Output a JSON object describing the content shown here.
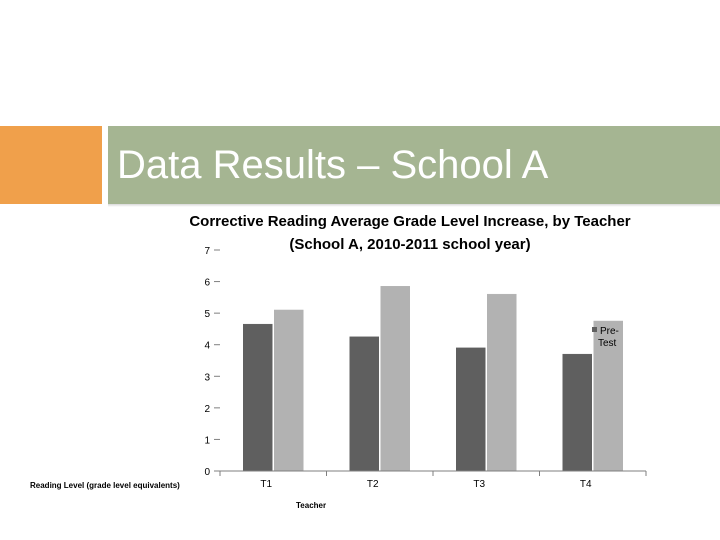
{
  "slide": {
    "title": "Data Results – School A",
    "accent_color": "#f0a04b",
    "band_color": "#a5b592"
  },
  "chart_data": {
    "type": "bar",
    "title_lines": [
      "Corrective Reading Average Grade Level Increase, by Teacher",
      "(School A, 2010-2011 school year)"
    ],
    "categories": [
      "T1",
      "T2",
      "T3",
      "T4"
    ],
    "series": [
      {
        "values": [
          4.65,
          4.25,
          3.9,
          3.7
        ],
        "color": "#5f5f5f"
      },
      {
        "values": [
          5.1,
          5.85,
          5.6,
          4.75
        ],
        "color": "#b2b2b2"
      }
    ],
    "legend_entries": [
      "Pre-",
      "Test"
    ],
    "xlabel": "Teacher",
    "ylabel": "Reading Level (grade level equivalents)",
    "yticks": [
      0,
      1,
      2,
      3,
      4,
      5,
      6,
      7
    ],
    "ylim": [
      0,
      7
    ],
    "grid": false,
    "legend_position": "right"
  }
}
